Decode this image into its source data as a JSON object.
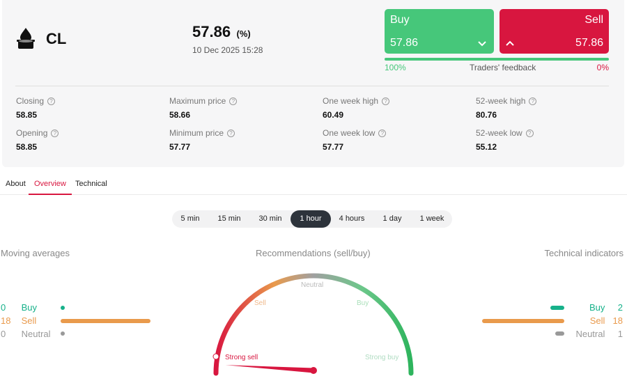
{
  "instrument": {
    "symbol": "CL",
    "logo_icon": "oil-drop-icon"
  },
  "quote": {
    "price": "57.86",
    "change_pct": "(%)",
    "datetime": "10 Dec 2025 15:28"
  },
  "trade": {
    "buy_label": "Buy",
    "buy_price": "57.86",
    "sell_label": "Sell",
    "sell_price": "57.86",
    "buy_chevron": "⌵",
    "sell_chevron": "^"
  },
  "feedback": {
    "buy_pct_text": "100%",
    "label": "Traders' feedback",
    "sell_pct_text": "0%",
    "buy_fraction": 1.0,
    "sell_fraction": 0.0
  },
  "stats": [
    {
      "label": "Closing",
      "value": "58.85"
    },
    {
      "label": "Maximum price",
      "value": "58.66"
    },
    {
      "label": "One week high",
      "value": "60.49"
    },
    {
      "label": "52-week high",
      "value": "80.76"
    },
    {
      "label": "Opening",
      "value": "58.85"
    },
    {
      "label": "Minimum price",
      "value": "57.77"
    },
    {
      "label": "One week low",
      "value": "57.77"
    },
    {
      "label": "52-week low",
      "value": "55.12"
    }
  ],
  "help_glyph": "?",
  "tabs": [
    {
      "label": "About"
    },
    {
      "label": "Overview",
      "active": true
    },
    {
      "label": "Technical"
    }
  ],
  "intervals": [
    "5 min",
    "15 min",
    "30 min",
    "1 hour",
    "4 hours",
    "1 day",
    "1 week"
  ],
  "active_interval": "1 hour",
  "moving_averages": {
    "title": "Moving averages",
    "buy": {
      "count": "0",
      "label": "Buy"
    },
    "sell": {
      "count": "18",
      "label": "Sell"
    },
    "neutral": {
      "count": "0",
      "label": "Neutral"
    }
  },
  "recommendations": {
    "title": "Recommendations (sell/buy)",
    "labels": {
      "strong_sell": "Strong sell",
      "sell": "Sell",
      "neutral": "Neutral",
      "buy": "Buy",
      "strong_buy": "Strong buy"
    },
    "needle_position": 0.05
  },
  "technical_indicators": {
    "title": "Technical indicators",
    "buy": {
      "count": "2",
      "label": "Buy"
    },
    "sell": {
      "count": "18",
      "label": "Sell"
    },
    "neutral": {
      "count": "1",
      "label": "Neutral"
    }
  },
  "colors": {
    "buy": "#46c77a",
    "sell": "#d8163f",
    "orange": "#e99a4c",
    "teal": "#17b18a",
    "gray": "#999999"
  }
}
